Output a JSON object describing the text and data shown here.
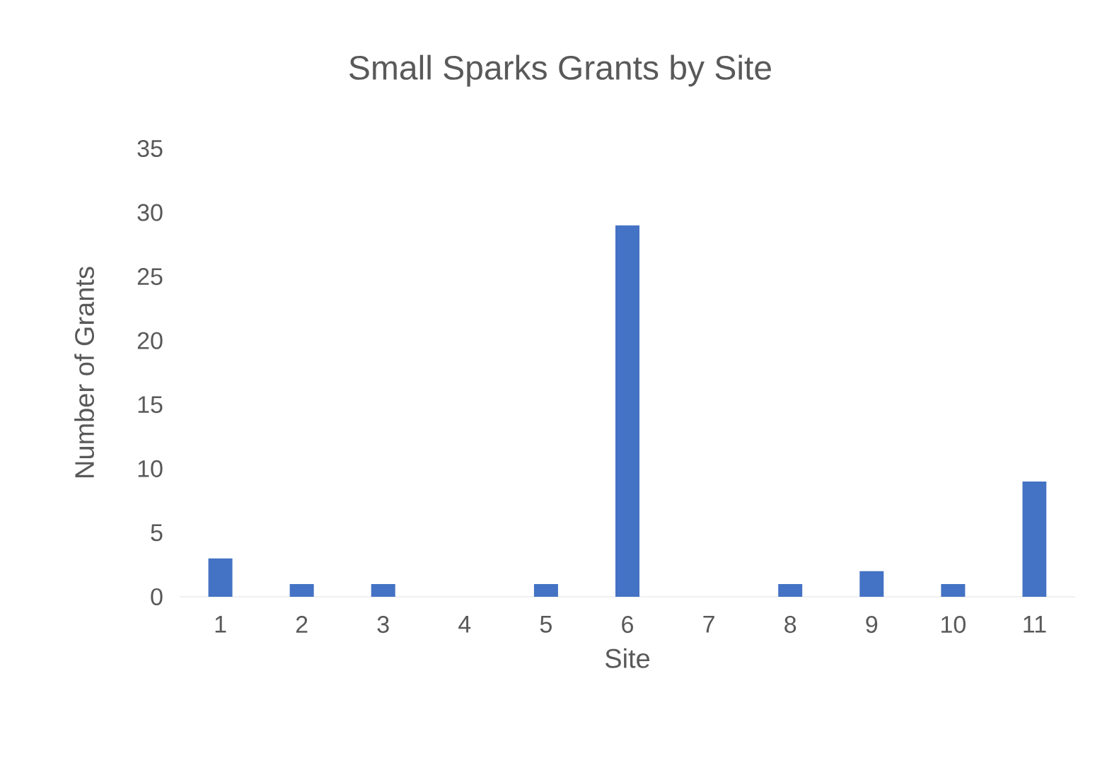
{
  "chart_data": {
    "type": "bar",
    "title": "Small Sparks Grants by Site",
    "xlabel": "Site",
    "ylabel": "Number of Grants",
    "categories": [
      "1",
      "2",
      "3",
      "4",
      "5",
      "6",
      "7",
      "8",
      "9",
      "10",
      "11"
    ],
    "values": [
      3,
      1,
      1,
      0,
      1,
      29,
      0,
      1,
      2,
      1,
      9
    ],
    "color": "#4472c4",
    "ylim": [
      0,
      35
    ],
    "yticks": [
      0,
      5,
      10,
      15,
      20,
      25,
      30,
      35
    ]
  }
}
